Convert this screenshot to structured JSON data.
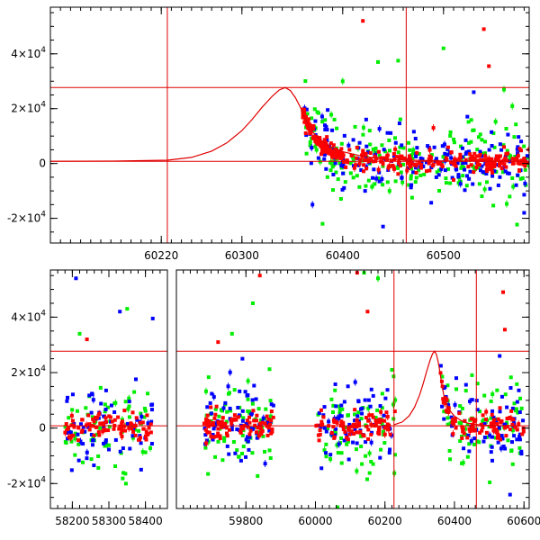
{
  "chart_data": [
    {
      "type": "scatter",
      "panel": "top",
      "x_range": [
        60110,
        60585
      ],
      "y_range": [
        -29000,
        57000
      ],
      "x_ticks": [
        60220,
        60300,
        60400,
        60500
      ],
      "x_tick_labels": [
        "60220",
        "60300",
        "60400",
        "60500"
      ],
      "y_ticks": [
        -20000,
        0,
        20000,
        40000
      ],
      "y_tick_labels": [
        {
          "mant": "-2×10",
          "exp": "4"
        },
        {
          "mant": "0",
          "exp": ""
        },
        {
          "mant": "2×10",
          "exp": "4"
        },
        {
          "mant": "4×10",
          "exp": "4"
        }
      ],
      "reference_lines": {
        "horizontal": [
          800,
          27700
        ],
        "vertical": [
          60226,
          60463
        ]
      },
      "model_curve": {
        "color": "#e00000",
        "x": [
          60110,
          60180,
          60226,
          60250,
          60270,
          60285,
          60300,
          60310,
          60320,
          60330,
          60337,
          60343,
          60348,
          60353,
          60358,
          60362,
          60366,
          60370,
          60380,
          60390,
          60400,
          60420,
          60440,
          60460,
          60500,
          60540,
          60585
        ],
        "y": [
          800,
          900,
          1200,
          2200,
          4500,
          7500,
          12000,
          16000,
          20500,
          24500,
          26800,
          27700,
          26600,
          24000,
          20500,
          17000,
          14000,
          11500,
          8000,
          5800,
          4300,
          2600,
          1700,
          1300,
          950,
          850,
          800
        ]
      },
      "series": [
        {
          "color": "#ff0000",
          "x_span": [
            60360,
            60585
          ],
          "y_scatter": 2000,
          "n": 260,
          "outliers": [
            [
              60420,
              52000
            ],
            [
              60540,
              49000
            ],
            [
              60545,
              35500
            ],
            [
              60490,
              13000
            ],
            [
              60510,
              -6000
            ],
            [
              60560,
              6000
            ]
          ]
        },
        {
          "color": "#00ee00",
          "x_span": [
            60362,
            60585
          ],
          "y_scatter": 7000,
          "n": 200,
          "outliers": [
            [
              60435,
              37000
            ],
            [
              60500,
              42000
            ],
            [
              60400,
              30000
            ],
            [
              60455,
              37500
            ],
            [
              60560,
              27000
            ],
            [
              60380,
              -22000
            ]
          ]
        },
        {
          "color": "#0000ff",
          "x_span": [
            60362,
            60585
          ],
          "y_scatter": 5500,
          "n": 200,
          "outliers": [
            [
              60440,
              -23000
            ],
            [
              60530,
              26000
            ],
            [
              60370,
              -15000
            ],
            [
              60580,
              -18000
            ]
          ]
        }
      ]
    },
    {
      "type": "scatter",
      "panel": "bottom",
      "x_range": [
        58140,
        60615
      ],
      "broken_axis": true,
      "segments": [
        {
          "x_range": [
            58140,
            58460
          ]
        },
        {
          "x_range": [
            59600,
            60615
          ]
        }
      ],
      "y_range": [
        -29000,
        57000
      ],
      "x_ticks": [
        58200,
        58300,
        58400,
        59800,
        60000,
        60200,
        60400,
        60600
      ],
      "x_tick_labels": [
        "58200",
        "58300",
        "58400",
        "59800",
        "60000",
        "60200",
        "60400",
        "60600"
      ],
      "y_ticks": [
        -20000,
        0,
        20000,
        40000
      ],
      "y_tick_labels": [
        {
          "mant": "-2×10",
          "exp": "4"
        },
        {
          "mant": "0",
          "exp": ""
        },
        {
          "mant": "2×10",
          "exp": "4"
        },
        {
          "mant": "4×10",
          "exp": "4"
        }
      ],
      "reference_lines": {
        "horizontal": [
          800,
          27700
        ],
        "vertical": [
          60226,
          60463
        ]
      },
      "series": [
        {
          "color": "#ff0000",
          "clusters": [
            [
              58180,
              58420
            ],
            [
              59680,
              59880
            ],
            [
              60000,
              60230
            ],
            [
              60360,
              60600
            ]
          ],
          "y_scatter": 2500,
          "n_per_cluster": 90,
          "outliers": [
            [
              60120,
              56000
            ],
            [
              59840,
              55000
            ],
            [
              60150,
              42000
            ],
            [
              60540,
              49000
            ],
            [
              60545,
              35500
            ],
            [
              58240,
              32000
            ],
            [
              59720,
              31000
            ]
          ]
        },
        {
          "color": "#00ee00",
          "clusters": [
            [
              58180,
              58420
            ],
            [
              59680,
              59880
            ],
            [
              60000,
              60230
            ],
            [
              60360,
              60600
            ]
          ],
          "y_scatter": 9000,
          "n_per_cluster": 70,
          "outliers": [
            [
              58220,
              34000
            ],
            [
              58350,
              43000
            ],
            [
              59760,
              34000
            ],
            [
              60140,
              56000
            ],
            [
              60180,
              54000
            ],
            [
              59820,
              45000
            ],
            [
              60220,
              21000
            ]
          ]
        },
        {
          "color": "#0000ff",
          "clusters": [
            [
              58180,
              58420
            ],
            [
              59680,
              59880
            ],
            [
              60000,
              60230
            ],
            [
              60360,
              60600
            ]
          ],
          "y_scatter": 7000,
          "n_per_cluster": 70,
          "outliers": [
            [
              58210,
              54000
            ],
            [
              58420,
              39500
            ],
            [
              58330,
              42000
            ],
            [
              59790,
              25000
            ],
            [
              60530,
              26000
            ],
            [
              60560,
              -24000
            ]
          ]
        }
      ]
    }
  ]
}
